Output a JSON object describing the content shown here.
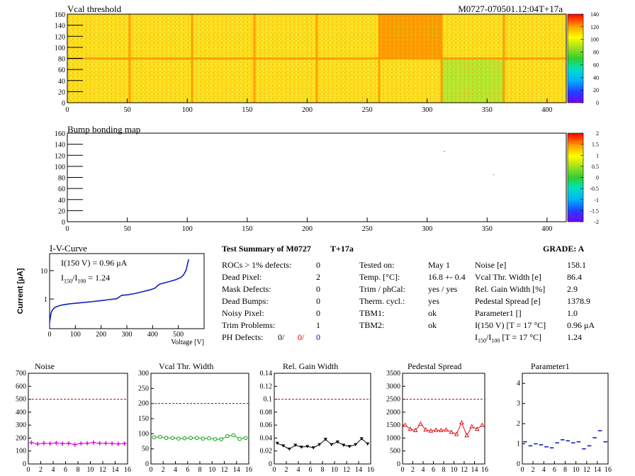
{
  "header": {
    "vcal_title": "Vcal threshold",
    "module_id": "M0727-070501.12:04T+17a",
    "bump_title": "Bump bonding map"
  },
  "colors": {
    "heat_low": "#ffff00",
    "heat_mid": "#f0a000",
    "heat_green": "#9ce030",
    "noise": "#e000e0",
    "vcal_width": "#10a010",
    "gain_width": "#000000",
    "pedestal": "#e01010",
    "parameter1": "#1020c0",
    "iv": "#1020c0",
    "limit": "#c00000"
  },
  "iv": {
    "title": "I-V-Curve",
    "line1": "I(150 V) = 0.96 μA",
    "line2_prefix": "I",
    "line2_sub1": "150",
    "line2_mid": "/I",
    "line2_sub2": "100",
    "line2_value": " =  1.24",
    "ylabel": "Current [μA]",
    "xlabel": "Voltage [V]"
  },
  "summary": {
    "title": "Test Summary of M0727",
    "tag": "T+17a",
    "grade": "GRADE:  A",
    "left": [
      {
        "label": "ROCs > 1% defects:",
        "value": "0"
      },
      {
        "label": "Dead Pixel:",
        "value": "2"
      },
      {
        "label": "Mask Defects:",
        "value": "0"
      },
      {
        "label": "Dead Bumps:",
        "value": "0"
      },
      {
        "label": "Noisy Pixel:",
        "value": "0"
      },
      {
        "label": "Trim Problems:",
        "value": "1"
      }
    ],
    "ph_label": "PH Defects:",
    "ph_values": [
      "0/",
      "0/",
      "0"
    ],
    "mid": [
      {
        "label": "Tested on:",
        "value": "May 1"
      },
      {
        "label": "Temp. [°C]:",
        "value": "16.8 +- 0.4"
      },
      {
        "label": "Trim / phCal:",
        "value": "yes / yes"
      },
      {
        "label": "Therm. cycl.:",
        "value": "yes"
      },
      {
        "label": "TBM1:",
        "value": "ok"
      },
      {
        "label": "TBM2:",
        "value": "ok"
      }
    ],
    "right": [
      {
        "label": "Noise [e]",
        "value": "158.1"
      },
      {
        "label": "Vcal Thr. Width [e]",
        "value": "86.4"
      },
      {
        "label": "Rel. Gain Width [%]",
        "value": "2.9"
      },
      {
        "label": "Pedestal Spread [e]",
        "value": "1378.9"
      },
      {
        "label": "Parameter1 []",
        "value": "1.0"
      },
      {
        "label": "I(150 V)  [T = 17 °C]",
        "value": "0.96 μA"
      }
    ],
    "ratio_label_prefix": "I",
    "ratio_sub1": "150",
    "ratio_mid": "/I",
    "ratio_sub2": "100",
    "ratio_suffix": "  [T = 17 °C]",
    "ratio_value": "1.24"
  },
  "chart_data": [
    {
      "type": "heatmap",
      "title": "Vcal threshold",
      "xlim": [
        0,
        416
      ],
      "ylim": [
        0,
        160
      ],
      "xticks": [
        0,
        50,
        100,
        150,
        200,
        250,
        300,
        350,
        400
      ],
      "yticks": [
        0,
        20,
        40,
        60,
        80,
        100,
        120,
        140,
        160
      ],
      "zlim": [
        0,
        140
      ],
      "zticks": [
        0,
        20,
        40,
        60,
        80,
        100,
        120,
        140
      ],
      "roc_means": [
        [
          98,
          96,
          100,
          98,
          96,
          94,
          82,
          102
        ],
        [
          100,
          102,
          104,
          98,
          100,
          118,
          104,
          108
        ]
      ]
    },
    {
      "type": "heatmap",
      "title": "Bump bonding map",
      "xlim": [
        0,
        416
      ],
      "ylim": [
        0,
        160
      ],
      "xticks": [
        0,
        50,
        100,
        150,
        200,
        250,
        300,
        350,
        400
      ],
      "yticks": [
        0,
        20,
        40,
        60,
        80,
        100,
        120,
        140,
        160
      ],
      "zlim": [
        -2,
        2
      ],
      "zticks": [
        "2",
        "1.5",
        "1",
        "0.5",
        "0",
        "-0.5",
        "-1",
        "-1.5",
        "-2"
      ],
      "points": [
        {
          "x": 314,
          "y": 128,
          "z": 1.5
        },
        {
          "x": 355,
          "y": 86,
          "z": 0.3
        }
      ]
    },
    {
      "type": "line",
      "title": "I-V-Curve",
      "xlabel": "Voltage [V]",
      "ylabel": "Current [μA]",
      "xlim": [
        0,
        600
      ],
      "ylog": true,
      "ylim": [
        0.09,
        40
      ],
      "xticks": [
        0,
        100,
        200,
        300,
        400,
        500
      ],
      "yticks": [
        1,
        10
      ],
      "x": [
        0,
        5,
        10,
        20,
        30,
        50,
        80,
        120,
        160,
        200,
        230,
        260,
        280,
        300,
        330,
        360,
        390,
        410,
        420,
        430,
        460,
        490,
        510,
        520,
        530,
        540
      ],
      "y": [
        0.15,
        0.3,
        0.4,
        0.5,
        0.55,
        0.62,
        0.68,
        0.74,
        0.8,
        0.88,
        0.95,
        1.02,
        1.35,
        1.4,
        1.55,
        1.8,
        2.1,
        2.45,
        3.0,
        3.4,
        4.0,
        4.8,
        5.8,
        7.0,
        10.5,
        25
      ]
    },
    {
      "type": "line",
      "title": "Noise",
      "xlim": [
        0,
        16
      ],
      "ylim": [
        0,
        700
      ],
      "xticks": [
        0,
        2,
        4,
        6,
        8,
        10,
        12,
        14,
        16
      ],
      "yticks": [
        0,
        100,
        200,
        300,
        400,
        500,
        600,
        700
      ],
      "limit": 500,
      "x": [
        0,
        1,
        2,
        3,
        4,
        5,
        6,
        7,
        8,
        9,
        10,
        11,
        12,
        13,
        14,
        15
      ],
      "values": [
        165,
        155,
        160,
        158,
        162,
        157,
        160,
        150,
        158,
        160,
        165,
        160,
        160,
        158,
        155,
        158
      ]
    },
    {
      "type": "line",
      "title": "Vcal Thr. Width",
      "xlim": [
        0,
        16
      ],
      "ylim": [
        0,
        300
      ],
      "xticks": [
        0,
        2,
        4,
        6,
        8,
        10,
        12,
        14,
        16
      ],
      "yticks": [
        0,
        50,
        100,
        150,
        200,
        250,
        300
      ],
      "limit": 200,
      "x": [
        0,
        1,
        2,
        3,
        4,
        5,
        6,
        7,
        8,
        9,
        10,
        11,
        12,
        13,
        14,
        15
      ],
      "values": [
        88,
        90,
        86,
        86,
        84,
        85,
        86,
        86,
        84,
        85,
        82,
        82,
        92,
        95,
        83,
        86
      ]
    },
    {
      "type": "line",
      "title": "Rel. Gain Width",
      "xlim": [
        0,
        16
      ],
      "ylim": [
        0,
        0.14
      ],
      "xticks": [
        0,
        2,
        4,
        6,
        8,
        10,
        12,
        14,
        16
      ],
      "yticks": [
        0,
        0.02,
        0.04,
        0.06,
        0.08,
        0.1,
        0.12,
        0.14
      ],
      "limit": 0.1,
      "x": [
        0,
        1,
        2,
        3,
        4,
        5,
        6,
        7,
        8,
        9,
        10,
        11,
        12,
        13,
        14,
        15
      ],
      "values": [
        0.032,
        0.028,
        0.023,
        0.029,
        0.026,
        0.027,
        0.025,
        0.03,
        0.038,
        0.03,
        0.034,
        0.029,
        0.027,
        0.03,
        0.039,
        0.031
      ]
    },
    {
      "type": "line",
      "title": "Pedestal Spread",
      "xlim": [
        0,
        16
      ],
      "ylim": [
        0,
        3500
      ],
      "xticks": [
        0,
        2,
        4,
        6,
        8,
        10,
        12,
        14,
        16
      ],
      "yticks": [
        0,
        500,
        1000,
        1500,
        2000,
        2500,
        3000,
        3500
      ],
      "limit": 2500,
      "x": [
        0,
        1,
        2,
        3,
        4,
        5,
        6,
        7,
        8,
        9,
        10,
        11,
        12,
        13,
        14,
        15
      ],
      "values": [
        1500,
        1350,
        1300,
        1550,
        1320,
        1280,
        1310,
        1300,
        1320,
        1230,
        1150,
        1600,
        1100,
        1450,
        1350,
        1500
      ]
    },
    {
      "type": "scatter",
      "title": "Parameter1",
      "xlim": [
        0,
        16
      ],
      "ylim": [
        0,
        4.5
      ],
      "xticks": [
        0,
        2,
        4,
        6,
        8,
        10,
        12,
        14,
        16
      ],
      "yticks": [
        0,
        1,
        2,
        3,
        4
      ],
      "x": [
        0,
        1,
        2,
        3,
        4,
        5,
        6,
        7,
        8,
        9,
        10,
        11,
        12,
        13,
        14,
        15
      ],
      "values": [
        1.1,
        0.9,
        1.0,
        0.95,
        0.85,
        0.8,
        1.05,
        1.2,
        1.15,
        1.05,
        1.1,
        0.75,
        0.9,
        1.3,
        1.65,
        1.1
      ]
    }
  ]
}
